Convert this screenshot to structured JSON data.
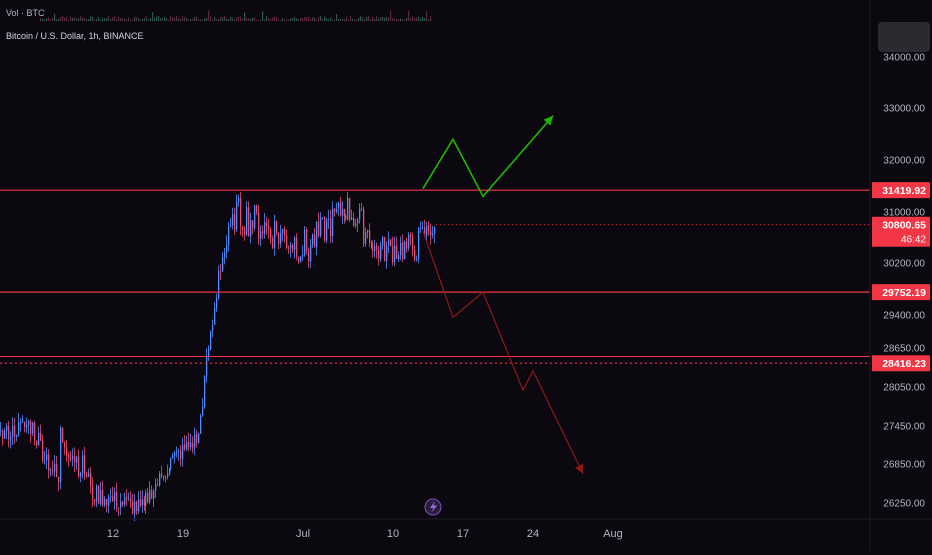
{
  "header": {
    "vol_label": "Vol · BTC",
    "symbol_title": "Bitcoin / U.S. Dollar, 1h, BINANCE"
  },
  "chart_data": {
    "type": "line",
    "title": "Bitcoin / U.S. Dollar, 1h, BINANCE",
    "y_ticks": [
      34000,
      33000,
      32000,
      31000,
      30200,
      29400,
      28650,
      28050,
      27450,
      26850,
      26250
    ],
    "y_tick_labels": [
      "34000.00",
      "33000.00",
      "32000.00",
      "31000.00",
      "30200.00",
      "29400.00",
      "28650.00",
      "28050.00",
      "27450.00",
      "26850.00",
      "26250.00"
    ],
    "x_tick_labels": [
      "12",
      "19",
      "Jul",
      "10",
      "17",
      "24",
      "Aug"
    ],
    "ylim": [
      25900,
      34400
    ],
    "horizontal_levels": [
      {
        "value": 31419.92,
        "label": "31419.92",
        "style": "solid",
        "color": "#f23645"
      },
      {
        "value": 29752.19,
        "label": "29752.19",
        "style": "solid",
        "color": "#f23645"
      },
      {
        "value": 28416.23,
        "label": "28416.23",
        "style": "dotted",
        "color": "#f23645"
      }
    ],
    "extra_level": {
      "value": 28520,
      "color": "#f23645"
    },
    "current_price": {
      "label": "30800.65",
      "countdown": "46:42",
      "value": 30800.65,
      "color": "#f23645"
    },
    "bullish_path": {
      "color": "#1fb800",
      "points": [
        {
          "x": "Jul 13",
          "y": 31450
        },
        {
          "x": "Jul 16",
          "y": 32400
        },
        {
          "x": "Jul 19",
          "y": 31300
        },
        {
          "x": "Jul 26",
          "y": 32850
        }
      ]
    },
    "bearish_path": {
      "color": "#8b1a1a",
      "points": [
        {
          "x": "Jul 13",
          "y": 30700
        },
        {
          "x": "Jul 16",
          "y": 29350
        },
        {
          "x": "Jul 19",
          "y": 29750
        },
        {
          "x": "Jul 23",
          "y": 28000
        },
        {
          "x": "Jul 24",
          "y": 28300
        },
        {
          "x": "Jul 29",
          "y": 26700
        }
      ]
    },
    "grid": false
  },
  "colors": {
    "background": "#0b0810",
    "up": "#4f8cff",
    "down": "#e84d6a",
    "level": "#f23645",
    "axis_text": "#b2b5be"
  },
  "icons": {
    "event_icon": "lightning-icon"
  }
}
